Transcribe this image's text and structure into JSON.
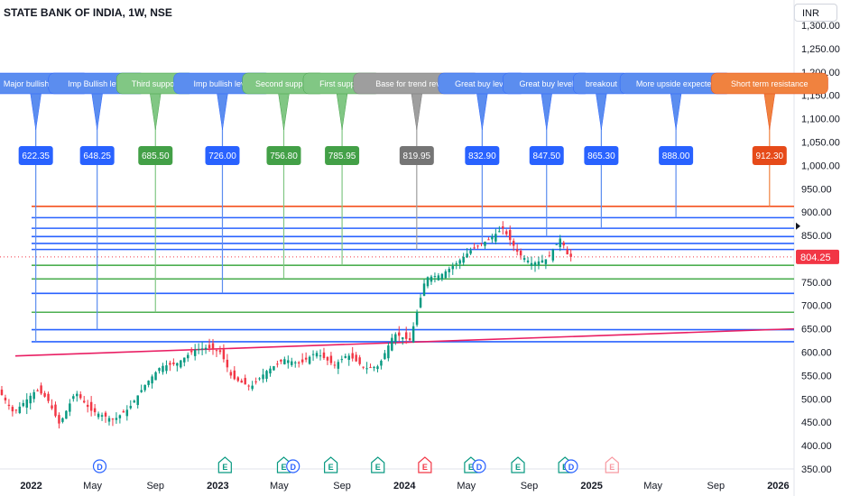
{
  "header": {
    "title": "STATE BANK OF INDIA, 1W, NSE",
    "currency": "INR"
  },
  "last_price": {
    "label": "804.25",
    "color": "#f23645"
  },
  "chart_data": {
    "type": "candlestick",
    "title": "STATE BANK OF INDIA, 1W, NSE",
    "ylim": [
      350,
      1300
    ],
    "y_ticks": [
      "350.00",
      "400.00",
      "450.00",
      "500.00",
      "550.00",
      "600.00",
      "650.00",
      "700.00",
      "750.00",
      "800.00",
      "850.00",
      "900.00",
      "950.00",
      "1,000.00",
      "1,050.00",
      "1,100.00",
      "1,150.00",
      "1,200.00",
      "1,250.00",
      "1,300.00"
    ],
    "y_tick_values": [
      350,
      400,
      450,
      500,
      550,
      600,
      650,
      700,
      750,
      800,
      850,
      900,
      950,
      1000,
      1050,
      1100,
      1150,
      1200,
      1250,
      1300
    ],
    "x_range": [
      "2021-11-01",
      "2026-02-01"
    ],
    "x_ticks": [
      {
        "date": "2022-01-01",
        "label": "2022",
        "bold": true
      },
      {
        "date": "2022-05-01",
        "label": "May",
        "bold": false
      },
      {
        "date": "2022-09-01",
        "label": "Sep",
        "bold": false
      },
      {
        "date": "2023-01-01",
        "label": "2023",
        "bold": true
      },
      {
        "date": "2023-05-01",
        "label": "May",
        "bold": false
      },
      {
        "date": "2023-09-01",
        "label": "Sep",
        "bold": false
      },
      {
        "date": "2024-01-01",
        "label": "2024",
        "bold": true
      },
      {
        "date": "2024-05-01",
        "label": "May",
        "bold": false
      },
      {
        "date": "2024-09-01",
        "label": "Sep",
        "bold": false
      },
      {
        "date": "2025-01-01",
        "label": "2025",
        "bold": true
      },
      {
        "date": "2025-05-01",
        "label": "May",
        "bold": false
      },
      {
        "date": "2025-09-01",
        "label": "Sep",
        "bold": false
      },
      {
        "date": "2026-01-01",
        "label": "2026",
        "bold": true
      }
    ],
    "price_path": [
      {
        "date": "2021-11-01",
        "price": 520
      },
      {
        "date": "2021-12-01",
        "price": 470
      },
      {
        "date": "2022-01-15",
        "price": 520
      },
      {
        "date": "2022-02-05",
        "price": 500
      },
      {
        "date": "2022-03-01",
        "price": 445
      },
      {
        "date": "2022-04-01",
        "price": 515
      },
      {
        "date": "2022-05-01",
        "price": 475
      },
      {
        "date": "2022-06-15",
        "price": 455
      },
      {
        "date": "2022-07-15",
        "price": 480
      },
      {
        "date": "2022-08-15",
        "price": 530
      },
      {
        "date": "2022-09-15",
        "price": 570
      },
      {
        "date": "2022-10-15",
        "price": 575
      },
      {
        "date": "2022-11-20",
        "price": 605
      },
      {
        "date": "2022-12-15",
        "price": 610
      },
      {
        "date": "2023-01-10",
        "price": 600
      },
      {
        "date": "2023-02-01",
        "price": 545
      },
      {
        "date": "2023-03-10",
        "price": 525
      },
      {
        "date": "2023-04-10",
        "price": 560
      },
      {
        "date": "2023-05-15",
        "price": 585
      },
      {
        "date": "2023-06-15",
        "price": 575
      },
      {
        "date": "2023-07-15",
        "price": 600
      },
      {
        "date": "2023-08-20",
        "price": 572
      },
      {
        "date": "2023-09-15",
        "price": 595
      },
      {
        "date": "2023-10-20",
        "price": 565
      },
      {
        "date": "2023-11-15",
        "price": 570
      },
      {
        "date": "2023-12-15",
        "price": 640
      },
      {
        "date": "2024-01-15",
        "price": 625
      },
      {
        "date": "2024-02-15",
        "price": 760
      },
      {
        "date": "2024-03-15",
        "price": 765
      },
      {
        "date": "2024-04-15",
        "price": 790
      },
      {
        "date": "2024-05-15",
        "price": 820
      },
      {
        "date": "2024-06-15",
        "price": 840
      },
      {
        "date": "2024-07-15",
        "price": 865
      },
      {
        "date": "2024-08-15",
        "price": 810
      },
      {
        "date": "2024-09-10",
        "price": 790
      },
      {
        "date": "2024-10-10",
        "price": 800
      },
      {
        "date": "2024-11-05",
        "price": 845
      },
      {
        "date": "2024-11-20",
        "price": 804
      }
    ],
    "horizontal_levels": [
      {
        "value": 622.35,
        "color": "#2962ff"
      },
      {
        "value": 648.25,
        "color": "#2962ff"
      },
      {
        "value": 685.5,
        "color": "#4caf50"
      },
      {
        "value": 726.0,
        "color": "#2962ff"
      },
      {
        "value": 756.8,
        "color": "#4caf50"
      },
      {
        "value": 785.95,
        "color": "#4caf50"
      },
      {
        "value": 819.95,
        "color": "#2962ff"
      },
      {
        "value": 832.9,
        "color": "#2962ff"
      },
      {
        "value": 847.5,
        "color": "#2962ff"
      },
      {
        "value": 865.3,
        "color": "#2962ff"
      },
      {
        "value": 888.0,
        "color": "#2962ff"
      },
      {
        "value": 912.3,
        "color": "#f4511e"
      }
    ],
    "trendline": {
      "from": {
        "date": "2021-12-01",
        "price": 592
      },
      "to": {
        "date": "2026-02-01",
        "price": 650
      },
      "color": "#e91e63"
    },
    "annotations": [
      {
        "label": "Major bullish level",
        "value_label": "622.35",
        "value": 622.35,
        "x_date": "2022-01-10",
        "color": "#5b8def",
        "tag_color": "#2962ff"
      },
      {
        "label": "Imp Bullish level",
        "value_label": "648.25",
        "value": 648.25,
        "x_date": "2022-05-10",
        "color": "#5b8def",
        "tag_color": "#2962ff"
      },
      {
        "label": "Third support",
        "value_label": "685.50",
        "value": 685.5,
        "x_date": "2022-09-01",
        "color": "#81c784",
        "tag_color": "#43a047"
      },
      {
        "label": "Imp bullish level",
        "value_label": "726.00",
        "value": 726.0,
        "x_date": "2023-01-10",
        "color": "#5b8def",
        "tag_color": "#2962ff"
      },
      {
        "label": "Second support",
        "value_label": "756.80",
        "value": 756.8,
        "x_date": "2023-05-10",
        "color": "#81c784",
        "tag_color": "#43a047"
      },
      {
        "label": "First support",
        "value_label": "785.95",
        "value": 785.95,
        "x_date": "2023-09-01",
        "color": "#81c784",
        "tag_color": "#43a047"
      },
      {
        "label": "Base for trend reversal",
        "value_label": "819.95",
        "value": 819.95,
        "x_date": "2024-01-25",
        "color": "#9e9e9e",
        "tag_color": "#757575"
      },
      {
        "label": "Great buy level",
        "value_label": "832.90",
        "value": 832.9,
        "x_date": "2024-06-01",
        "color": "#5b8def",
        "tag_color": "#2962ff"
      },
      {
        "label": "Great buy level",
        "value_label": "847.50",
        "value": 847.5,
        "x_date": "2024-10-05",
        "color": "#5b8def",
        "tag_color": "#2962ff"
      },
      {
        "label": "breakout",
        "value_label": "865.30",
        "value": 865.3,
        "x_date": "2025-01-20",
        "color": "#5b8def",
        "tag_color": "#2962ff"
      },
      {
        "label": "More upside expected",
        "value_label": "888.00",
        "value": 888.0,
        "x_date": "2025-06-15",
        "color": "#5b8def",
        "tag_color": "#2962ff"
      },
      {
        "label": "Short term resistance",
        "value_label": "912.30",
        "value": 912.3,
        "x_date": "2025-12-15",
        "color": "#f0823f",
        "tag_color": "#e64a19"
      }
    ],
    "events": [
      {
        "date": "2022-05-15",
        "label": "D",
        "color": "#2962ff",
        "shape": "circle"
      },
      {
        "date": "2023-01-15",
        "label": "E",
        "color": "#089981",
        "shape": "house"
      },
      {
        "date": "2023-05-10",
        "label": "E",
        "color": "#089981",
        "shape": "house"
      },
      {
        "date": "2023-05-28",
        "label": "D",
        "color": "#2962ff",
        "shape": "circle"
      },
      {
        "date": "2023-08-10",
        "label": "E",
        "color": "#089981",
        "shape": "house"
      },
      {
        "date": "2023-11-10",
        "label": "E",
        "color": "#089981",
        "shape": "house"
      },
      {
        "date": "2024-02-10",
        "label": "E",
        "color": "#f23645",
        "shape": "house"
      },
      {
        "date": "2024-05-10",
        "label": "E",
        "color": "#089981",
        "shape": "house"
      },
      {
        "date": "2024-05-26",
        "label": "D",
        "color": "#2962ff",
        "shape": "circle"
      },
      {
        "date": "2024-08-10",
        "label": "E",
        "color": "#089981",
        "shape": "house"
      },
      {
        "date": "2024-11-10",
        "label": "E",
        "color": "#089981",
        "shape": "house"
      },
      {
        "date": "2024-11-22",
        "label": "D",
        "color": "#2962ff",
        "shape": "circle"
      },
      {
        "date": "2025-02-10",
        "label": "E",
        "color": "#f23645",
        "shape": "house-faded"
      }
    ],
    "colors": {
      "up": "#089981",
      "down": "#f23645"
    }
  }
}
